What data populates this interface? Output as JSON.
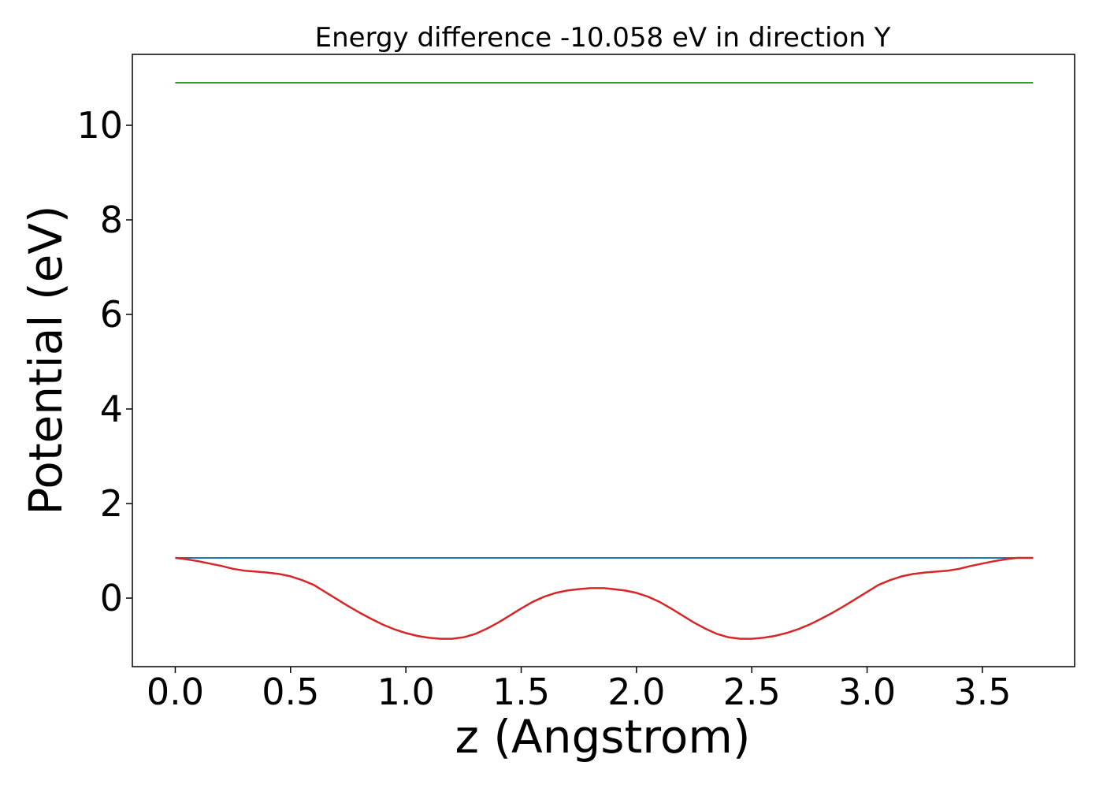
{
  "chart_data": {
    "type": "line",
    "title": "Energy difference -10.058 eV in direction Y",
    "xlabel": "z (Angstrom)",
    "ylabel": "Potential (eV)",
    "xlim": [
      -0.186,
      3.9
    ],
    "ylim": [
      -1.45,
      11.5
    ],
    "xticks": [
      "0.0",
      "0.5",
      "1.0",
      "1.5",
      "2.0",
      "2.5",
      "3.0",
      "3.5"
    ],
    "yticks": [
      "0",
      "2",
      "4",
      "6",
      "8",
      "10"
    ],
    "grid": false,
    "legend": "none",
    "series": [
      {
        "color": "#2ca02c",
        "x": [
          0.0,
          3.72
        ],
        "y": [
          10.9,
          10.9
        ]
      },
      {
        "color": "#1f77b4",
        "x": [
          0.0,
          3.72
        ],
        "y": [
          0.85,
          0.85
        ]
      },
      {
        "color": "#d62728",
        "x": [
          0.0,
          0.05,
          0.1,
          0.15,
          0.2,
          0.25,
          0.3,
          0.35,
          0.4,
          0.45,
          0.5,
          0.55,
          0.6,
          0.65,
          0.7,
          0.75,
          0.8,
          0.85,
          0.9,
          0.95,
          1.0,
          1.05,
          1.1,
          1.15,
          1.2,
          1.25,
          1.3,
          1.35,
          1.4,
          1.45,
          1.5,
          1.55,
          1.6,
          1.65,
          1.7,
          1.75,
          1.8,
          1.86,
          1.9,
          1.95,
          2.0,
          2.05,
          2.1,
          2.15,
          2.2,
          2.25,
          2.3,
          2.35,
          2.4,
          2.45,
          2.5,
          2.55,
          2.6,
          2.65,
          2.7,
          2.75,
          2.8,
          2.85,
          2.9,
          2.95,
          3.0,
          3.05,
          3.1,
          3.15,
          3.2,
          3.25,
          3.3,
          3.35,
          3.4,
          3.45,
          3.5,
          3.55,
          3.6,
          3.65,
          3.72
        ],
        "y": [
          0.85,
          0.82,
          0.78,
          0.73,
          0.68,
          0.62,
          0.58,
          0.56,
          0.54,
          0.51,
          0.46,
          0.38,
          0.28,
          0.13,
          -0.02,
          -0.17,
          -0.31,
          -0.44,
          -0.56,
          -0.66,
          -0.74,
          -0.8,
          -0.84,
          -0.86,
          -0.86,
          -0.83,
          -0.76,
          -0.65,
          -0.52,
          -0.37,
          -0.22,
          -0.08,
          0.03,
          0.11,
          0.16,
          0.19,
          0.21,
          0.21,
          0.19,
          0.16,
          0.11,
          0.03,
          -0.08,
          -0.22,
          -0.37,
          -0.52,
          -0.65,
          -0.76,
          -0.83,
          -0.86,
          -0.86,
          -0.84,
          -0.8,
          -0.74,
          -0.66,
          -0.56,
          -0.44,
          -0.31,
          -0.17,
          -0.02,
          0.13,
          0.28,
          0.38,
          0.46,
          0.51,
          0.54,
          0.56,
          0.58,
          0.62,
          0.68,
          0.73,
          0.78,
          0.82,
          0.85,
          0.85
        ]
      }
    ]
  }
}
